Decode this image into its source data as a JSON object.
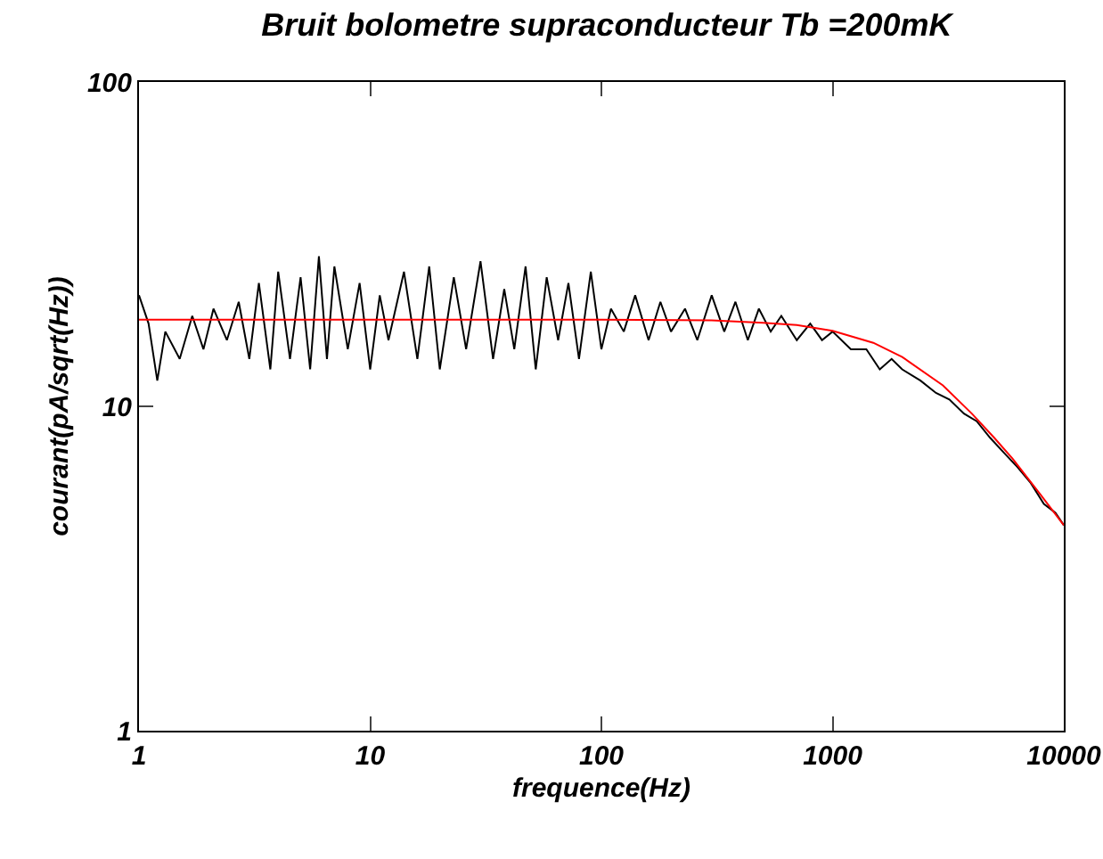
{
  "chart_data": {
    "type": "line",
    "title": "Bruit bolometre supraconducteur Tb =200mK",
    "xlabel": "frequence(Hz)",
    "ylabel": "courant(pA/sqrt(Hz))",
    "log": "xy",
    "xlim": [
      1,
      10000
    ],
    "ylim": [
      1,
      100
    ],
    "xticks": [
      1,
      10,
      100,
      1000,
      10000
    ],
    "yticks": [
      1,
      10,
      100
    ],
    "grid": false,
    "marker": "none",
    "line_style": "solid",
    "series": [
      {
        "color": "#000000",
        "x": [
          1,
          1.1,
          1.2,
          1.3,
          1.5,
          1.7,
          1.9,
          2.1,
          2.4,
          2.7,
          3,
          3.3,
          3.7,
          4,
          4.5,
          5,
          5.5,
          6,
          6.5,
          7,
          8,
          9,
          10,
          11,
          12,
          14,
          16,
          18,
          20,
          23,
          26,
          30,
          34,
          38,
          42,
          47,
          52,
          58,
          65,
          72,
          80,
          90,
          100,
          110,
          125,
          140,
          160,
          180,
          200,
          230,
          260,
          300,
          340,
          380,
          430,
          480,
          540,
          600,
          700,
          800,
          900,
          1000,
          1200,
          1400,
          1600,
          1800,
          2000,
          2400,
          2800,
          3200,
          3700,
          4200,
          4800,
          5500,
          6300,
          7200,
          8200,
          9200,
          10000
        ],
        "values": [
          22,
          18,
          12,
          17,
          14,
          19,
          15,
          20,
          16,
          21,
          14,
          24,
          13,
          26,
          14,
          25,
          13,
          29,
          14,
          27,
          15,
          24,
          13,
          22,
          16,
          26,
          14,
          27,
          13,
          25,
          15,
          28,
          14,
          23,
          15,
          27,
          13,
          25,
          16,
          24,
          14,
          26,
          15,
          20,
          17,
          22,
          16,
          21,
          17,
          20,
          16,
          22,
          17,
          21,
          16,
          20,
          17,
          19,
          16,
          18,
          16,
          17,
          15,
          15,
          13,
          14,
          13,
          12,
          11,
          10.5,
          9.5,
          9,
          8,
          7.2,
          6.5,
          5.8,
          5,
          4.7,
          4.3
        ]
      },
      {
        "color": "#ff0000",
        "x": [
          1,
          100,
          300,
          500,
          700,
          1000,
          1500,
          2000,
          3000,
          4000,
          5000,
          6000,
          8000,
          10000
        ],
        "values": [
          18.5,
          18.5,
          18.4,
          18.1,
          17.8,
          17.1,
          15.7,
          14.2,
          11.6,
          9.5,
          8,
          6.9,
          5.3,
          4.3
        ]
      }
    ]
  }
}
